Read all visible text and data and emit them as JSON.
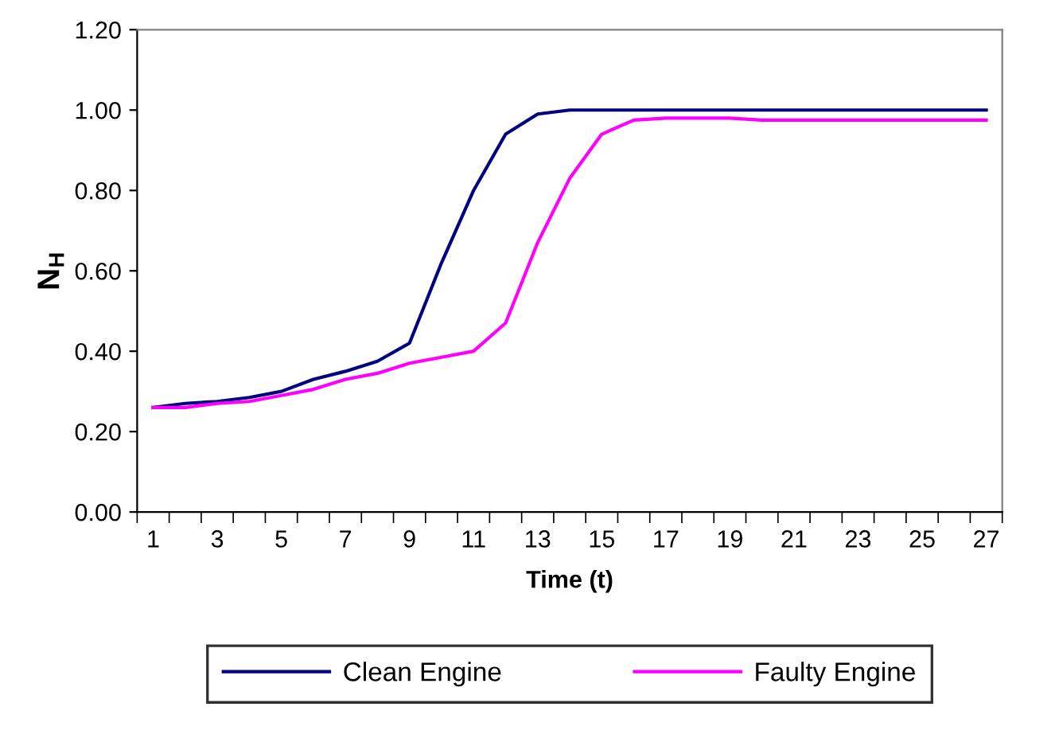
{
  "chart_data": {
    "type": "line",
    "xlabel": "Time (t)",
    "ylabel": "N$_{H}$",
    "categories": [
      "1",
      null,
      "3",
      null,
      "5",
      null,
      "7",
      null,
      "9",
      null,
      "11",
      null,
      "13",
      null,
      "15",
      null,
      "17",
      null,
      "19",
      null,
      "21",
      null,
      "23",
      null,
      "25",
      null,
      "27"
    ],
    "series": [
      {
        "name": "Clean Engine",
        "color": "#000080",
        "values": [
          0.26,
          0.27,
          0.275,
          0.285,
          0.3,
          0.33,
          0.35,
          0.375,
          0.42,
          0.62,
          0.8,
          0.94,
          0.99,
          1.0,
          1.0,
          1.0,
          1.0,
          1.0,
          1.0,
          1.0,
          1.0,
          1.0,
          1.0,
          1.0,
          1.0,
          1.0,
          1.0
        ]
      },
      {
        "name": "Faulty Engine",
        "color": "#ff00ff",
        "values": [
          0.26,
          0.26,
          0.27,
          0.275,
          0.29,
          0.305,
          0.33,
          0.345,
          0.37,
          0.385,
          0.4,
          0.47,
          0.67,
          0.83,
          0.94,
          0.975,
          0.98,
          0.98,
          0.98,
          0.975,
          0.975,
          0.975,
          0.975,
          0.975,
          0.975,
          0.975,
          0.975
        ]
      }
    ],
    "ylim": [
      0,
      1.2
    ],
    "yticks": [
      {
        "value": 0,
        "label": "0.00"
      },
      {
        "value": 0.2,
        "label": "0.20"
      },
      {
        "value": 0.4,
        "label": "0.40"
      },
      {
        "value": 0.6,
        "label": "0.60"
      },
      {
        "value": 0.8,
        "label": "0.80"
      },
      {
        "value": 1.0,
        "label": "1.00"
      },
      {
        "value": 1.2,
        "label": "1.20"
      }
    ],
    "legend": "bottom",
    "grid": false,
    "marker": "none",
    "line_style": "solid"
  }
}
